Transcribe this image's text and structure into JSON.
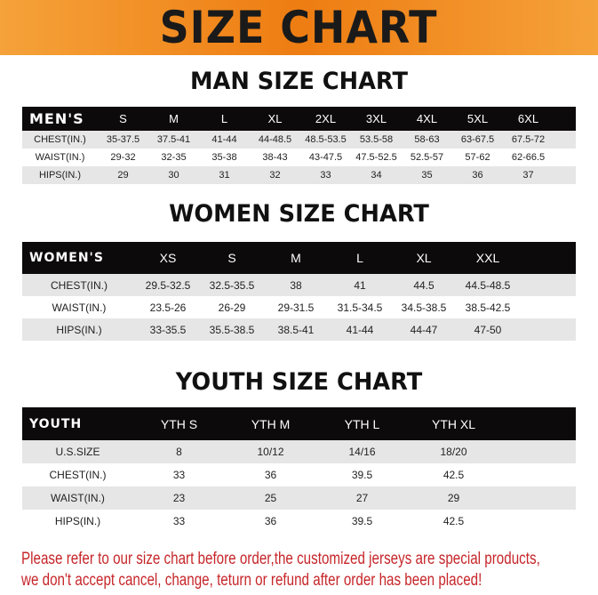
{
  "banner": {
    "title": "SIZE CHART"
  },
  "men": {
    "title": "MAN SIZE CHART",
    "header": "MEN'S",
    "sizes": [
      "S",
      "M",
      "L",
      "XL",
      "2XL",
      "3XL",
      "4XL",
      "5XL",
      "6XL"
    ],
    "rows": [
      {
        "label": "CHEST(IN.)",
        "values": [
          "35-37.5",
          "37.5-41",
          "41-44",
          "44-48.5",
          "48.5-53.5",
          "53.5-58",
          "58-63",
          "63-67.5",
          "67.5-72"
        ]
      },
      {
        "label": "WAIST(IN.)",
        "values": [
          "29-32",
          "32-35",
          "35-38",
          "38-43",
          "43-47.5",
          "47.5-52.5",
          "52.5-57",
          "57-62",
          "62-66.5"
        ]
      },
      {
        "label": "HIPS(IN.)",
        "values": [
          "29",
          "30",
          "31",
          "32",
          "33",
          "34",
          "35",
          "36",
          "37"
        ]
      }
    ]
  },
  "women": {
    "title": "WOMEN SIZE CHART",
    "header": "WOMEN'S",
    "sizes": [
      "XS",
      "S",
      "M",
      "L",
      "XL",
      "XXL"
    ],
    "rows": [
      {
        "label": "CHEST(IN.)",
        "values": [
          "29.5-32.5",
          "32.5-35.5",
          "38",
          "41",
          "44.5",
          "44.5-48.5"
        ]
      },
      {
        "label": "WAIST(IN.)",
        "values": [
          "23.5-26",
          "26-29",
          "29-31.5",
          "31.5-34.5",
          "34.5-38.5",
          "38.5-42.5"
        ]
      },
      {
        "label": "HIPS(IN.)",
        "values": [
          "33-35.5",
          "35.5-38.5",
          "38.5-41",
          "41-44",
          "44-47",
          "47-50"
        ]
      }
    ]
  },
  "youth": {
    "title": "YOUTH SIZE CHART",
    "header": "YOUTH",
    "sizes": [
      "YTH S",
      "YTH M",
      "YTH L",
      "YTH XL"
    ],
    "rows": [
      {
        "label": "U.S.SIZE",
        "values": [
          "8",
          "10/12",
          "14/16",
          "18/20"
        ]
      },
      {
        "label": "CHEST(IN.)",
        "values": [
          "33",
          "36",
          "39.5",
          "42.5"
        ]
      },
      {
        "label": "WAIST(IN.)",
        "values": [
          "23",
          "25",
          "27",
          "29"
        ]
      },
      {
        "label": "HIPS(IN.)",
        "values": [
          "33",
          "36",
          "39.5",
          "42.5"
        ]
      }
    ]
  },
  "notice": {
    "line1": "Please refer to our size chart before order,the customized jerseys are special products,",
    "line2": "we don't accept cancel, change, teturn or refund after order has been placed!"
  }
}
